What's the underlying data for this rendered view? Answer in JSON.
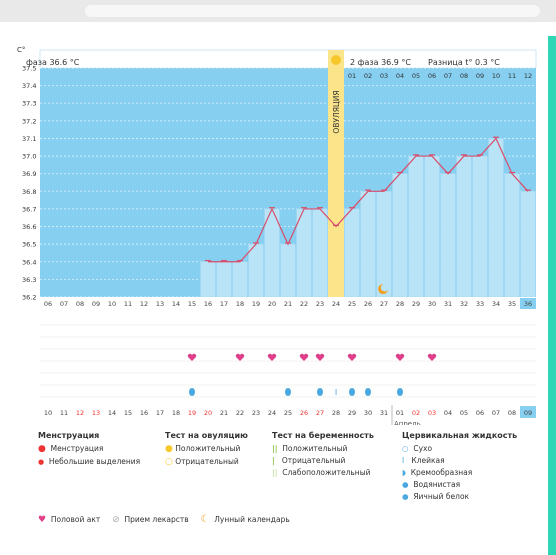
{
  "chart_data": {
    "type": "line",
    "y_unit": "C°",
    "ylim": [
      36.2,
      37.5
    ],
    "y_ticks": [
      "37.5",
      "37.4",
      "37.3",
      "37.2",
      "37.1",
      "37.0",
      "36.9",
      "36.8",
      "36.7",
      "36.6",
      "36.5",
      "36.4",
      "36.3",
      "36.2"
    ],
    "cycle_days": [
      "06",
      "07",
      "08",
      "09",
      "10",
      "11",
      "12",
      "13",
      "14",
      "15",
      "16",
      "17",
      "18",
      "19",
      "20",
      "21",
      "22",
      "23",
      "24",
      "25",
      "26",
      "27",
      "28",
      "29",
      "30",
      "31",
      "32",
      "33",
      "34",
      "35",
      "36"
    ],
    "phase2_days": [
      "01",
      "02",
      "03",
      "04",
      "05",
      "06",
      "07",
      "08",
      "09",
      "10",
      "11",
      "12"
    ],
    "ovulation_day": "24",
    "series": [
      {
        "x": [
          "16",
          "17",
          "18",
          "19",
          "20",
          "21",
          "22",
          "23",
          "24",
          "25",
          "26",
          "27",
          "28",
          "29",
          "30",
          "31",
          "32",
          "33",
          "34",
          "35",
          "36"
        ],
        "values": [
          36.4,
          36.4,
          36.4,
          36.5,
          36.7,
          36.5,
          36.7,
          36.7,
          36.6,
          36.7,
          36.8,
          36.8,
          36.9,
          37.0,
          37.0,
          36.9,
          37.0,
          37.0,
          37.1,
          36.9,
          36.8
        ]
      }
    ]
  },
  "header": {
    "phase1": "фаза 36.6 °C",
    "phase2": "2 фаза 36.9 °C",
    "diff": "Разница t° 0.3 °C",
    "ovulation_label": "ОВУЛЯЦИЯ"
  },
  "dates": [
    {
      "t": "10",
      "r": false
    },
    {
      "t": "11",
      "r": false
    },
    {
      "t": "12",
      "r": true
    },
    {
      "t": "13",
      "r": true
    },
    {
      "t": "14",
      "r": false
    },
    {
      "t": "15",
      "r": false
    },
    {
      "t": "16",
      "r": false
    },
    {
      "t": "17",
      "r": false
    },
    {
      "t": "18",
      "r": false
    },
    {
      "t": "19",
      "r": true
    },
    {
      "t": "20",
      "r": true
    },
    {
      "t": "21",
      "r": false
    },
    {
      "t": "22",
      "r": false
    },
    {
      "t": "23",
      "r": false
    },
    {
      "t": "24",
      "r": false
    },
    {
      "t": "25",
      "r": false
    },
    {
      "t": "26",
      "r": true
    },
    {
      "t": "27",
      "r": true
    },
    {
      "t": "28",
      "r": false
    },
    {
      "t": "29",
      "r": false
    },
    {
      "t": "30",
      "r": false
    },
    {
      "t": "31",
      "r": false
    },
    {
      "t": "01",
      "r": false
    },
    {
      "t": "02",
      "r": true
    },
    {
      "t": "03",
      "r": true
    },
    {
      "t": "04",
      "r": false
    },
    {
      "t": "05",
      "r": false
    },
    {
      "t": "06",
      "r": false
    },
    {
      "t": "07",
      "r": false
    },
    {
      "t": "08",
      "r": false
    },
    {
      "t": "09",
      "r": false
    }
  ],
  "month_label": "Апрель",
  "legend": {
    "menstruation": {
      "title": "Менструация",
      "items": [
        "Менструация",
        "Небольшие выделения"
      ]
    },
    "ovulation_test": {
      "title": "Тест на овуляцию",
      "items": [
        "Положительный",
        "Отрицательный"
      ]
    },
    "pregnancy_test": {
      "title": "Тест на беременность",
      "items": [
        "Положительный",
        "Отрицательный",
        "Слабоположительный"
      ]
    },
    "cervical": {
      "title": "Цервикальная жидкость",
      "items": [
        "Сухо",
        "Клейкая",
        "Кремообразная",
        "Водянистая",
        "Яичный белок"
      ]
    },
    "bottom": [
      "Половой акт",
      "Прием лекарств",
      "Лунный календарь"
    ]
  },
  "icons": {
    "heart": "heart-icon",
    "drop": "drop-icon",
    "moon": "moon-icon",
    "pill": "pill-icon",
    "circle": "circle-icon",
    "bars": "test-bars-icon"
  },
  "colors": {
    "chart_bg": "#86cff0",
    "bar_fill": "#b9e4f7",
    "line": "#d94c6a",
    "ovulation": "#fbe48a",
    "heart": "#e0408a",
    "drop": "#e03a3a",
    "cervical": "#4aa8e0",
    "accent": "#2ed6b5"
  }
}
